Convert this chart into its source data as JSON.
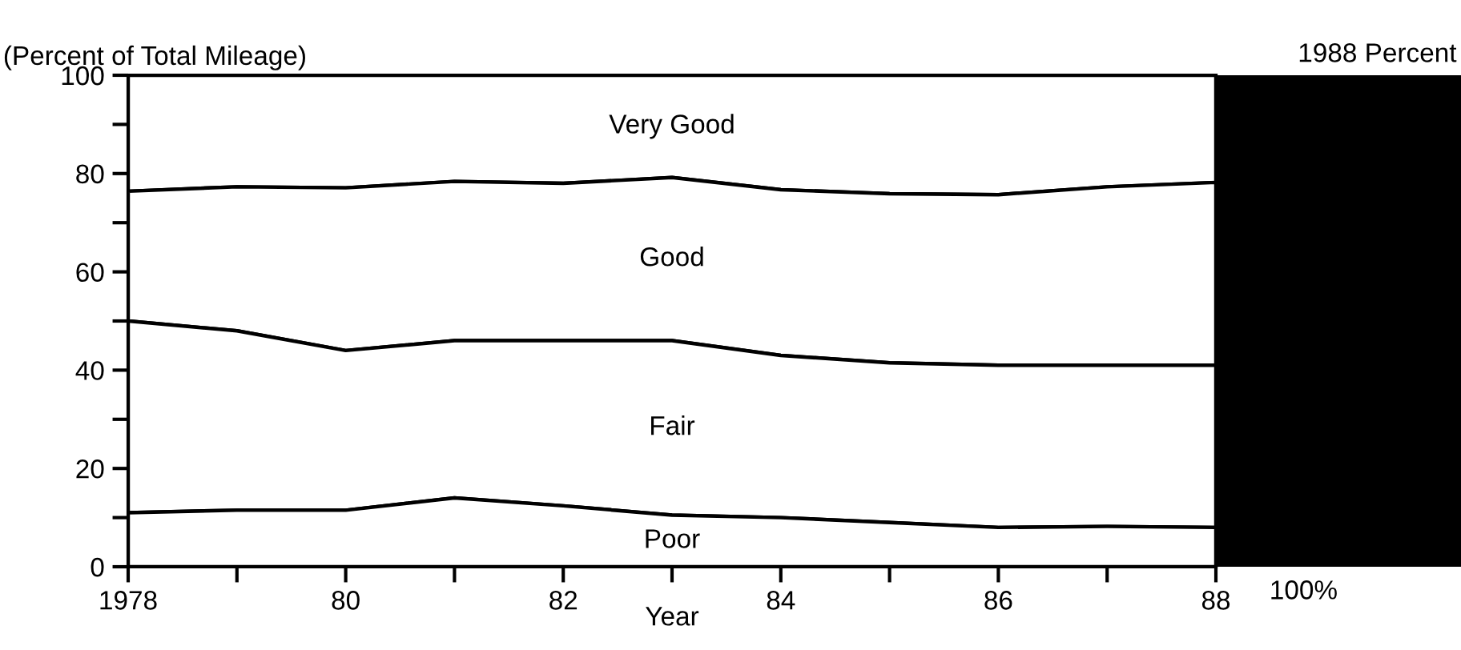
{
  "chart_data": {
    "type": "area",
    "stacked": true,
    "xlabel": "Year",
    "ylabel": "(Percent of Total Mileage)",
    "x": [
      1978,
      1979,
      1980,
      1981,
      1982,
      1983,
      1984,
      1985,
      1986,
      1987,
      1988
    ],
    "series": [
      {
        "name": "Poor",
        "color": "#000000",
        "values": [
          11,
          11.5,
          11.5,
          14,
          12.4,
          10.5,
          10,
          9,
          8,
          8.2,
          8
        ]
      },
      {
        "name": "Fair",
        "color": "#000000",
        "values": [
          39,
          36.5,
          32.5,
          32,
          33.6,
          35.5,
          33,
          32.5,
          33,
          32.8,
          33
        ]
      },
      {
        "name": "Good",
        "color": "#000000",
        "values": [
          26.4,
          29.3,
          33.1,
          32.4,
          32,
          33.2,
          33.7,
          34.4,
          34.7,
          36.3,
          37.2
        ]
      },
      {
        "name": "Very Good",
        "color": "#000000",
        "values": [
          23.6,
          22.7,
          22.9,
          21.6,
          22,
          20.8,
          23.3,
          24.1,
          24.3,
          22.7,
          21.8
        ]
      }
    ],
    "xlim": [
      1978,
      1988
    ],
    "ylim": [
      0,
      100
    ],
    "xticks": [
      {
        "value": 1978,
        "label": "1978"
      },
      {
        "value": 1979,
        "label": null
      },
      {
        "value": 1980,
        "label": "80"
      },
      {
        "value": 1981,
        "label": null
      },
      {
        "value": 1982,
        "label": "82"
      },
      {
        "value": 1983,
        "label": null
      },
      {
        "value": 1984,
        "label": "84"
      },
      {
        "value": 1985,
        "label": null
      },
      {
        "value": 1986,
        "label": "86"
      },
      {
        "value": 1987,
        "label": null
      },
      {
        "value": 1988,
        "label": "88"
      }
    ],
    "yticks": [
      0,
      {
        "value": 10,
        "label": null
      },
      20,
      {
        "value": 30,
        "label": null
      },
      40,
      {
        "value": 50,
        "label": null
      },
      60,
      {
        "value": 70,
        "label": null
      },
      80,
      {
        "value": 90,
        "label": null
      },
      100
    ],
    "annotations": [
      "1988 Percent",
      "100%"
    ]
  }
}
